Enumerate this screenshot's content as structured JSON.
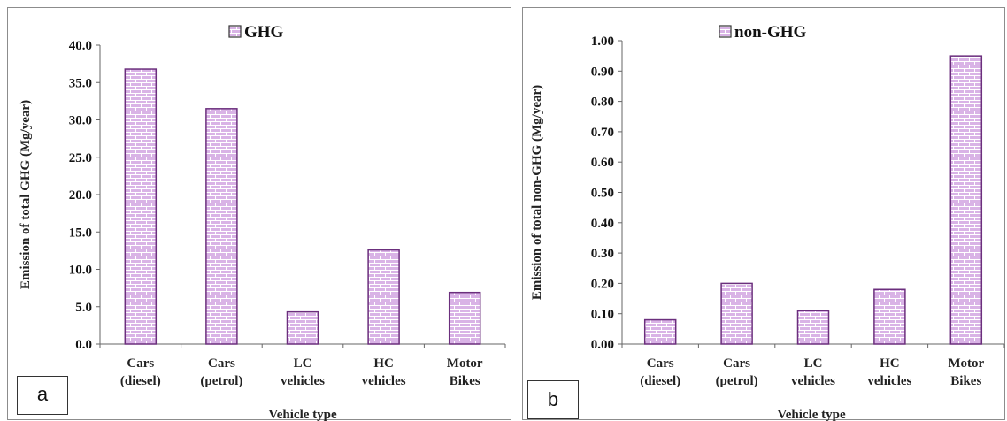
{
  "chart_data": [
    {
      "type": "bar",
      "panel_label": "a",
      "legend": [
        "GHG"
      ],
      "ylabel": "Emission of total GHG (Mg/year)",
      "xlabel": "Vehicle type",
      "ylim": [
        0,
        40
      ],
      "yticks": [
        "0.0",
        "5.0",
        "10.0",
        "15.0",
        "20.0",
        "25.0",
        "30.0",
        "35.0",
        "40.0"
      ],
      "categories": [
        [
          "Cars",
          "(diesel)"
        ],
        [
          "Cars",
          "(petrol)"
        ],
        [
          "LC",
          "vehicles"
        ],
        [
          "HC",
          "vehicles"
        ],
        [
          "Motor",
          "Bikes"
        ]
      ],
      "series": [
        {
          "name": "GHG",
          "values": [
            36.8,
            31.5,
            4.3,
            12.6,
            6.9
          ]
        }
      ],
      "bar_fill": "#d9b3e6",
      "bar_stroke": "#6b2f7d"
    },
    {
      "type": "bar",
      "panel_label": "b",
      "legend": [
        "non-GHG"
      ],
      "ylabel": "Emission of total non-GHG (Mg/year)",
      "xlabel": "Vehicle type",
      "ylim": [
        0,
        1.0
      ],
      "yticks": [
        "0.00",
        "0.10",
        "0.20",
        "0.30",
        "0.40",
        "0.50",
        "0.60",
        "0.70",
        "0.80",
        "0.90",
        "1.00"
      ],
      "categories": [
        [
          "Cars",
          "(diesel)"
        ],
        [
          "Cars",
          "(petrol)"
        ],
        [
          "LC",
          "vehicles"
        ],
        [
          "HC",
          "vehicles"
        ],
        [
          "Motor",
          "Bikes"
        ]
      ],
      "series": [
        {
          "name": "non-GHG",
          "values": [
            0.08,
            0.2,
            0.11,
            0.18,
            0.95
          ]
        }
      ],
      "bar_fill": "#d9b3e6",
      "bar_stroke": "#6b2f7d"
    }
  ]
}
